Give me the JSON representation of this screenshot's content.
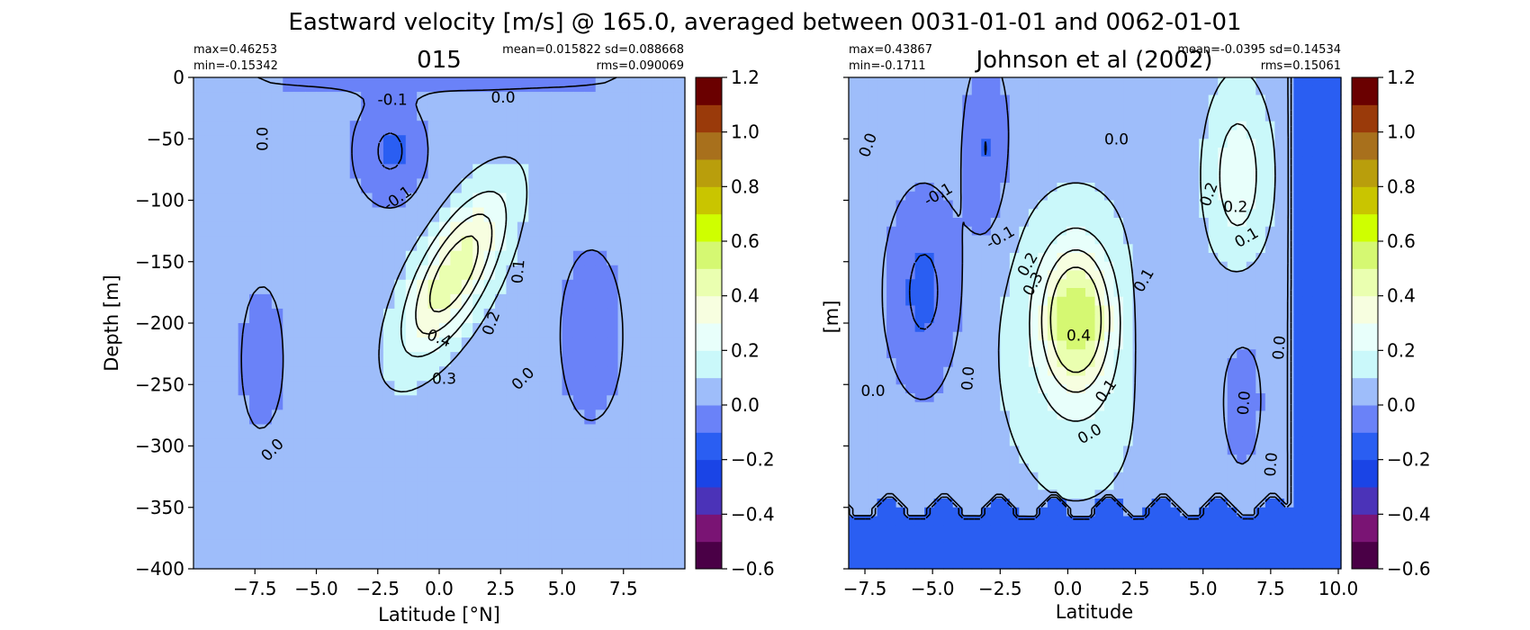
{
  "figure": {
    "title": "Eastward velocity [m/s] @ 165.0, averaged between 0031-01-01 and 0062-01-01"
  },
  "chart_data": [
    {
      "type": "heatmap",
      "title": "015",
      "xlabel": "Latitude [°N]",
      "ylabel": "Depth [m]",
      "xlim": [
        -10,
        10
      ],
      "ylim": [
        -400,
        0
      ],
      "xticks": [
        "−7.5",
        "−5.0",
        "−2.5",
        "0.0",
        "2.5",
        "5.0",
        "7.5"
      ],
      "xtick_values": [
        -7.5,
        -5.0,
        -2.5,
        0.0,
        2.5,
        5.0,
        7.5
      ],
      "yticks": [
        "0",
        "−50",
        "−100",
        "−150",
        "−200",
        "−250",
        "−300",
        "−350",
        "−400"
      ],
      "ytick_values": [
        0,
        -50,
        -100,
        -150,
        -200,
        -250,
        -300,
        -350,
        -400
      ],
      "stats": {
        "max": "max=0.46253",
        "min": "min=-0.15342",
        "mean_sd": "mean=0.015822 sd=0.088668",
        "rms": "rms=0.090069"
      },
      "contour_labels": [
        {
          "text": "-0.1",
          "x": -1.9,
          "y": -18,
          "rot": 0
        },
        {
          "text": "0.0",
          "x": 2.6,
          "y": -16,
          "rot": 0
        },
        {
          "text": "0.0",
          "x": -7.2,
          "y": -50,
          "rot": -90
        },
        {
          "text": "-0.1",
          "x": -1.7,
          "y": -98,
          "rot": -35
        },
        {
          "text": "0.1",
          "x": 3.2,
          "y": -158,
          "rot": -85
        },
        {
          "text": "0.2",
          "x": 2.1,
          "y": -200,
          "rot": -70
        },
        {
          "text": "0.4",
          "x": 0.0,
          "y": -212,
          "rot": 20
        },
        {
          "text": "0.3",
          "x": 0.2,
          "y": -245,
          "rot": 0
        },
        {
          "text": "0.0",
          "x": 3.4,
          "y": -245,
          "rot": -45
        },
        {
          "text": "0.0",
          "x": -6.8,
          "y": -303,
          "rot": -45
        }
      ]
    },
    {
      "type": "heatmap",
      "title": "Johnson et al (2002)",
      "xlabel": "Latitude",
      "ylabel": "[m]",
      "xlim": [
        -8.1,
        10.1
      ],
      "ylim": [
        -400,
        0
      ],
      "xticks": [
        "−7.5",
        "−5.0",
        "−2.5",
        "0.0",
        "2.5",
        "5.0",
        "7.5",
        "10.0"
      ],
      "xtick_values": [
        -7.5,
        -5.0,
        -2.5,
        0.0,
        2.5,
        5.0,
        7.5,
        10.0
      ],
      "yticks": [],
      "ytick_values": [
        0,
        -50,
        -100,
        -150,
        -200,
        -250,
        -300,
        -350,
        -400
      ],
      "stats": {
        "max": "max=0.43867",
        "min": "min=-0.1711",
        "mean_sd": "mean=-0.0395 sd=0.14534",
        "rms": "rms=0.15061"
      },
      "contour_labels": [
        {
          "text": "0.0",
          "x": -7.4,
          "y": -55,
          "rot": -70
        },
        {
          "text": "-0.1",
          "x": -4.8,
          "y": -95,
          "rot": -30
        },
        {
          "text": "0.0",
          "x": 1.8,
          "y": -50,
          "rot": 0
        },
        {
          "text": "-0.1",
          "x": -2.5,
          "y": -130,
          "rot": -30
        },
        {
          "text": "0.2",
          "x": -1.5,
          "y": -152,
          "rot": -60
        },
        {
          "text": "0.3",
          "x": -1.3,
          "y": -168,
          "rot": -60
        },
        {
          "text": "0.1",
          "x": 2.8,
          "y": -165,
          "rot": -60
        },
        {
          "text": "0.2",
          "x": 5.2,
          "y": -95,
          "rot": -70
        },
        {
          "text": "0.2",
          "x": 6.2,
          "y": -105,
          "rot": 0
        },
        {
          "text": "0.1",
          "x": 6.6,
          "y": -130,
          "rot": -30
        },
        {
          "text": "0.4",
          "x": 0.4,
          "y": -210,
          "rot": 0
        },
        {
          "text": "0.0",
          "x": -7.2,
          "y": -255,
          "rot": 0
        },
        {
          "text": "0.0",
          "x": -3.7,
          "y": -245,
          "rot": -85
        },
        {
          "text": "0.1",
          "x": 1.4,
          "y": -255,
          "rot": -55
        },
        {
          "text": "0.0",
          "x": 0.8,
          "y": -290,
          "rot": -30
        },
        {
          "text": "0.0",
          "x": 7.8,
          "y": -220,
          "rot": -85
        },
        {
          "text": "0.0",
          "x": 6.5,
          "y": -265,
          "rot": -85
        },
        {
          "text": "0.0",
          "x": 7.5,
          "y": -315,
          "rot": -85
        }
      ]
    }
  ],
  "colorbar": {
    "ticks": [
      "1.2",
      "1.0",
      "0.8",
      "0.6",
      "0.4",
      "0.2",
      "0.0",
      "−0.2",
      "−0.4",
      "−0.6"
    ],
    "tick_values": [
      1.2,
      1.0,
      0.8,
      0.6,
      0.4,
      0.2,
      0.0,
      -0.2,
      -0.4,
      -0.6
    ],
    "levels": [
      -0.6,
      -0.5,
      -0.4,
      -0.3,
      -0.2,
      -0.1,
      0.0,
      0.1,
      0.2,
      0.3,
      0.4,
      0.5,
      0.6,
      0.7,
      0.8,
      0.9,
      1.0,
      1.1,
      1.2
    ],
    "colors": [
      "#4a0046",
      "#7a1474",
      "#4b33b8",
      "#1a44e6",
      "#2a5ef2",
      "#6a82f8",
      "#9ebdfa",
      "#caf8fa",
      "#e8fffb",
      "#f7fee0",
      "#eaffb0",
      "#d5f872",
      "#cfff00",
      "#c9c500",
      "#b99e0c",
      "#a8701c",
      "#9a3a0a",
      "#6a0000"
    ]
  }
}
